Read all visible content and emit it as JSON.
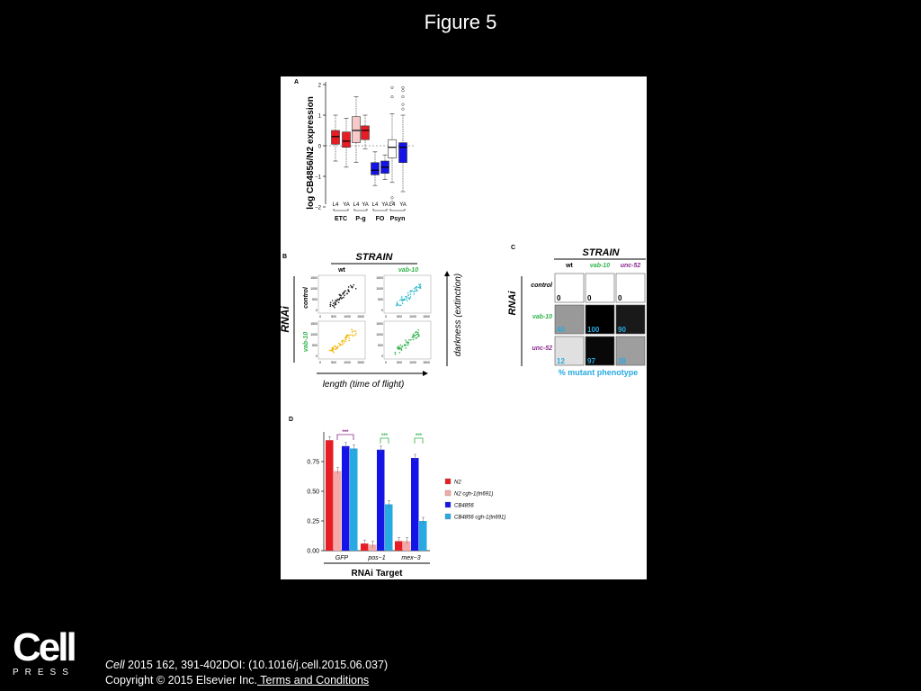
{
  "slide": {
    "title": "Figure 5"
  },
  "colors": {
    "red": "#e81c24",
    "pink": "#f4a9a8",
    "blue": "#1414e6",
    "cyan": "#27aae1",
    "green": "#2db34a",
    "purple": "#8b2b8f",
    "gold": "#f0b400",
    "teal": "#29b9c9",
    "lightred": "#f7c9c9"
  },
  "panel_a": {
    "letter": "A",
    "ylabel": "log CB4856/N2 expression",
    "yticks": [
      "2",
      "1",
      "0",
      "−1",
      "−2"
    ],
    "stage_labels": [
      "L4",
      "YA",
      "L4",
      "YA",
      "L4",
      "YA",
      "L4",
      "YA"
    ],
    "groups": [
      "ETC",
      "P-g",
      "FO",
      "Psyn"
    ]
  },
  "chart_data": [
    {
      "type": "box",
      "panel": "A",
      "ylabel": "log CB4856/N2 expression",
      "ylim": [
        -2,
        2
      ],
      "groups": [
        "ETC",
        "P-g",
        "FO",
        "Psyn"
      ],
      "stages": [
        "L4",
        "YA"
      ],
      "boxes": [
        {
          "group": "ETC",
          "stage": "L4",
          "q1": 0.05,
          "median": 0.3,
          "q3": 0.5,
          "whisker_low": -0.5,
          "whisker_high": 1.0
        },
        {
          "group": "ETC",
          "stage": "YA",
          "q1": -0.05,
          "median": 0.15,
          "q3": 0.45,
          "whisker_low": -0.7,
          "whisker_high": 0.9
        },
        {
          "group": "P-g",
          "stage": "L4",
          "q1": 0.1,
          "median": 0.5,
          "q3": 0.95,
          "whisker_low": -0.55,
          "whisker_high": 1.6
        },
        {
          "group": "P-g",
          "stage": "YA",
          "q1": 0.2,
          "median": 0.5,
          "q3": 0.65,
          "whisker_low": -0.1,
          "whisker_high": 1.0
        },
        {
          "group": "FO",
          "stage": "L4",
          "q1": -0.95,
          "median": -0.8,
          "q3": -0.55,
          "whisker_low": -1.3,
          "whisker_high": -0.2
        },
        {
          "group": "FO",
          "stage": "YA",
          "q1": -0.9,
          "median": -0.7,
          "q3": -0.5,
          "whisker_low": -1.1,
          "whisker_high": -0.3
        },
        {
          "group": "Psyn",
          "stage": "L4",
          "q1": -0.4,
          "median": -0.05,
          "q3": 0.2,
          "whisker_low": -1.2,
          "whisker_high": 1.05
        },
        {
          "group": "Psyn",
          "stage": "YA",
          "q1": -0.55,
          "median": -0.05,
          "q3": 0.1,
          "whisker_low": -1.5,
          "whisker_high": 1.0
        }
      ]
    },
    {
      "type": "heatmap",
      "panel": "C",
      "columns": [
        "wt",
        "vab-10",
        "unc-52"
      ],
      "rows": [
        "control",
        "vab-10",
        "unc-52"
      ],
      "values": [
        [
          0,
          0,
          0
        ],
        [
          40,
          100,
          90
        ],
        [
          12,
          97,
          38
        ]
      ],
      "legend": "% mutant phenotype"
    },
    {
      "type": "bar",
      "panel": "D",
      "categories": [
        "GFP",
        "pos−1",
        "mex−3"
      ],
      "xlabel": "RNAi Target",
      "ylim": [
        0,
        1
      ],
      "yticks": [
        0.0,
        0.25,
        0.5,
        0.75
      ],
      "series": [
        {
          "name": "N2",
          "values": [
            0.93,
            0.06,
            0.08
          ]
        },
        {
          "name": "N2 cgh-1(tn691)",
          "values": [
            0.67,
            0.05,
            0.08
          ]
        },
        {
          "name": "CB4856",
          "values": [
            0.88,
            0.85,
            0.78
          ]
        },
        {
          "name": "CB4856 cgh-1(tn691)",
          "values": [
            0.86,
            0.39,
            0.25
          ]
        }
      ],
      "significance": [
        "***",
        "***",
        "***"
      ]
    }
  ],
  "panel_b": {
    "letter": "B",
    "strain": "STRAIN",
    "rnai": "RNAi",
    "col_labels": [
      "wt",
      "vab-10"
    ],
    "row_labels": [
      "control",
      "vab-10"
    ],
    "xticks": [
      "0",
      "500",
      "1000",
      "1500"
    ],
    "yticks": [
      "1500",
      "1000",
      "500",
      "0"
    ],
    "x_axis_label": "length (time of flight)",
    "y_axis_label": "darkness (extinction)"
  },
  "panel_c": {
    "letter": "C",
    "strain": "STRAIN",
    "rnai": "RNAi",
    "col_labels": [
      "wt",
      "vab-10",
      "unc-52"
    ],
    "row_labels": [
      "control",
      "vab-10",
      "unc-52"
    ],
    "cell_labels": [
      [
        "0",
        "0",
        "0"
      ],
      [
        "40",
        "100",
        "90"
      ],
      [
        "12",
        "97",
        "38"
      ]
    ],
    "legend": "% mutant phenotype"
  },
  "panel_d": {
    "letter": "D",
    "ytick_labels": [
      "0.75",
      "0.50",
      "0.25",
      "0.00"
    ],
    "category_labels": [
      "GFP",
      "pos−1",
      "mex−3"
    ],
    "xlabel": "RNAi Target",
    "legend": [
      "N2",
      "N2 cgh-1(tn691)",
      "CB4856",
      "CB4856 cgh-1(tn691)"
    ],
    "stars": "***"
  },
  "citation": {
    "journal": "Cell",
    "ref": " 2015 162, 391-402DOI: (10.1016/j.cell.2015.06.037)",
    "copyright": "Copyright © 2015 Elsevier Inc.",
    "terms": " Terms and Conditions"
  },
  "logo": {
    "word": "Cell",
    "sub": "PRESS"
  }
}
